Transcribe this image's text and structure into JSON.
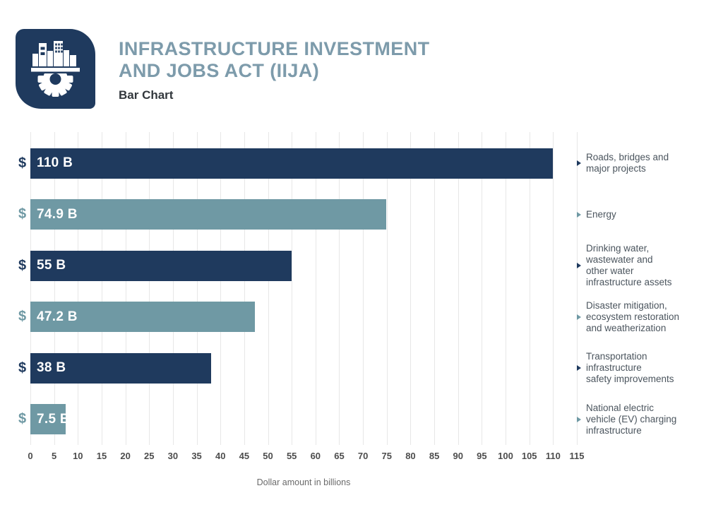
{
  "header": {
    "title_line1": "INFRASTRUCTURE INVESTMENT",
    "title_line2": "AND JOBS ACT (IIJA)",
    "subtitle": "Bar Chart",
    "logo_icon": "city-buildings-gear-icon"
  },
  "colors": {
    "navy": "#1f3a5e",
    "teal": "#6f99a4",
    "title_teal": "#7d9bab",
    "subtitle_text": "#32373c",
    "grid": "#e7e7e7",
    "tick_text": "#4d4d4d",
    "category_text": "#4b555e",
    "axis_label_text": "#6a6a6a",
    "bar_value_text": "#ffffff"
  },
  "chart_data": {
    "type": "bar",
    "orientation": "horizontal",
    "title": "INFRASTRUCTURE INVESTMENT AND JOBS ACT (IIJA)",
    "subtitle": "Bar Chart",
    "xlabel": "Dollar amount in billions",
    "xlim": [
      0,
      115
    ],
    "xticks": [
      0,
      5,
      10,
      15,
      20,
      25,
      30,
      35,
      40,
      45,
      50,
      55,
      60,
      65,
      70,
      75,
      80,
      85,
      90,
      95,
      100,
      105,
      110,
      115
    ],
    "grid": true,
    "value_prefix": "$",
    "bars": [
      {
        "value": 110,
        "value_label": "110 B",
        "prefix": "$",
        "color": "navy",
        "category": "Roads, bridges and major projects",
        "category_lines": [
          "Roads, bridges and",
          "major projects"
        ]
      },
      {
        "value": 74.9,
        "value_label": "74.9 B",
        "prefix": "$",
        "color": "teal",
        "category": "Energy",
        "category_lines": [
          "Energy"
        ]
      },
      {
        "value": 55,
        "value_label": "55 B",
        "prefix": "$",
        "color": "navy",
        "category": "Drinking water, wastewater and other water infrastructure assets",
        "category_lines": [
          "Drinking water,",
          "wastewater and",
          "other water",
          "infrastructure assets"
        ]
      },
      {
        "value": 47.2,
        "value_label": "47.2 B",
        "prefix": "$",
        "color": "teal",
        "category": "Disaster mitigation, ecosystem restoration and weatherization",
        "category_lines": [
          "Disaster mitigation,",
          "ecosystem restoration",
          "and weatherization"
        ]
      },
      {
        "value": 38,
        "value_label": "38 B",
        "prefix": "$",
        "color": "navy",
        "category": "Transportation infrastructure safety improvements",
        "category_lines": [
          "Transportation",
          "infrastructure",
          "safety improvements"
        ]
      },
      {
        "value": 7.5,
        "value_label": "7.5 B",
        "prefix": "$",
        "color": "teal",
        "category": "National electric vehicle (EV) charging infrastructure",
        "category_lines": [
          "National electric",
          "vehicle (EV) charging",
          "infrastructure"
        ]
      }
    ]
  }
}
